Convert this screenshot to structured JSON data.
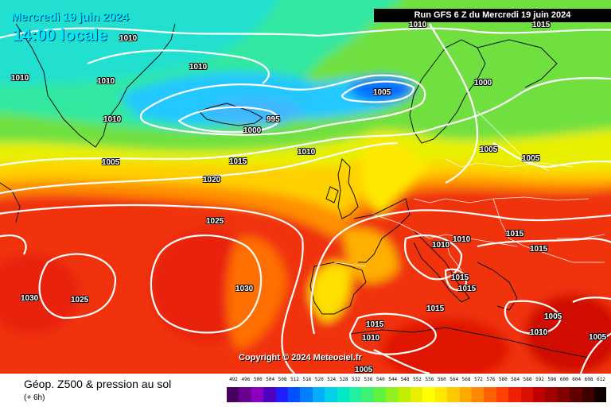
{
  "header": {
    "date_label": "Mercredi 19 juin 2024",
    "time_label": "14:00 locale",
    "run_label": "Run GFS 6 Z du Mercredi 19 juin 2024"
  },
  "copyright": "Copyright © 2024 Meteociel.fr",
  "legend": {
    "title": "Géop. Z500 & pression au sol",
    "subtitle": "(+ 6h)",
    "values": [
      "492",
      "496",
      "500",
      "504",
      "508",
      "512",
      "516",
      "520",
      "524",
      "528",
      "532",
      "536",
      "540",
      "544",
      "548",
      "552",
      "556",
      "560",
      "564",
      "568",
      "572",
      "576",
      "580",
      "584",
      "588",
      "592",
      "596",
      "600",
      "604",
      "608",
      "612"
    ],
    "colors": [
      "#4a0060",
      "#6a0090",
      "#8a00c0",
      "#5000c0",
      "#2020ff",
      "#0050ff",
      "#0080ff",
      "#00b0ff",
      "#00d0e8",
      "#00e8c8",
      "#20f0a0",
      "#40f070",
      "#60f040",
      "#90f020",
      "#c0f000",
      "#e8f000",
      "#ffff00",
      "#ffe800",
      "#ffc800",
      "#ffa800",
      "#ff8800",
      "#ff6000",
      "#ff4000",
      "#f02000",
      "#d81000",
      "#c00000",
      "#a00000",
      "#800000",
      "#600000",
      "#400000",
      "#100000"
    ]
  },
  "isobar_labels": [
    {
      "text": "1010"
    },
    {
      "text": "1015"
    },
    {
      "text": "1010"
    },
    {
      "text": "1010"
    },
    {
      "text": "1010"
    },
    {
      "text": "1010"
    },
    {
      "text": "1000"
    },
    {
      "text": "1005"
    },
    {
      "text": "995"
    },
    {
      "text": "1000"
    },
    {
      "text": "1010"
    },
    {
      "text": "1005"
    },
    {
      "text": "1015"
    },
    {
      "text": "1005"
    },
    {
      "text": "1020"
    },
    {
      "text": "1005"
    },
    {
      "text": "1025"
    },
    {
      "text": "1010"
    },
    {
      "text": "1015"
    },
    {
      "text": "1010"
    },
    {
      "text": "1015"
    },
    {
      "text": "1015"
    },
    {
      "text": "1015"
    },
    {
      "text": "1030"
    },
    {
      "text": "1030"
    },
    {
      "text": "1025"
    },
    {
      "text": "1015"
    },
    {
      "text": "1005"
    },
    {
      "text": "1015"
    },
    {
      "text": "1010"
    },
    {
      "text": "1010"
    },
    {
      "text": "1005"
    },
    {
      "text": "1005"
    }
  ]
}
